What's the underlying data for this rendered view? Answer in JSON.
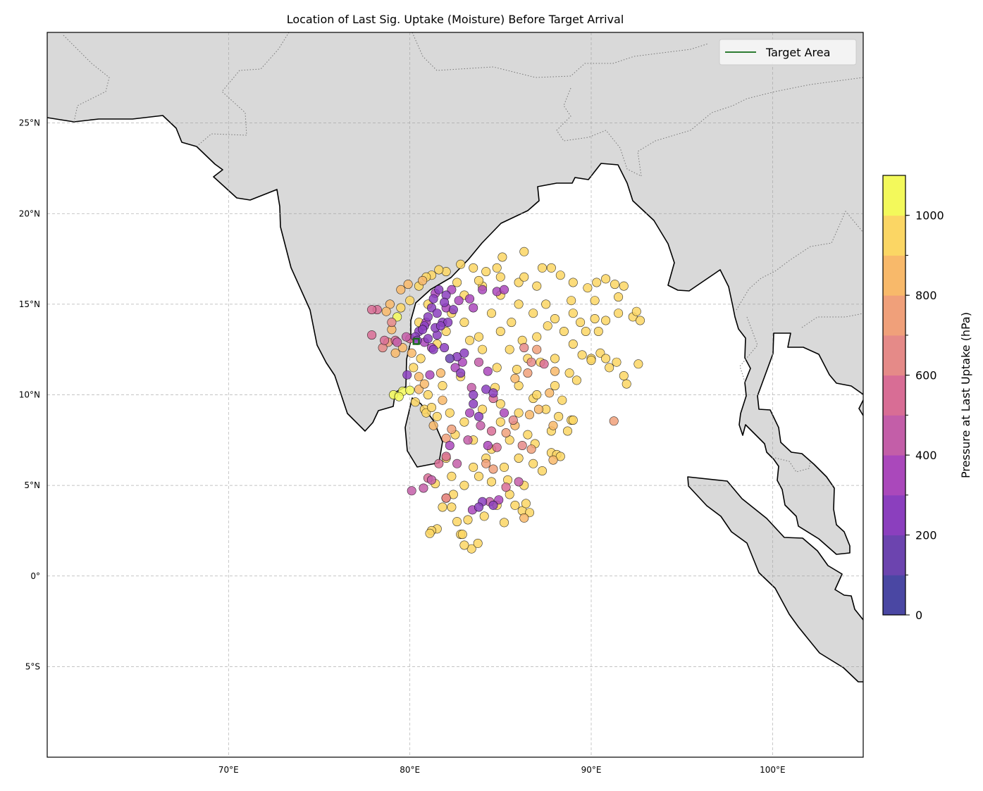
{
  "chart_data": {
    "type": "scatter",
    "title": "Location of Last Sig. Uptake (Moisture) Before Target Arrival",
    "xlabel": "",
    "ylabel": "",
    "xlim": [
      60,
      105
    ],
    "ylim": [
      -10,
      30
    ],
    "grid": true,
    "x_ticks": [
      {
        "value": 70,
        "label": "70°E"
      },
      {
        "value": 80,
        "label": "80°E"
      },
      {
        "value": 90,
        "label": "90°E"
      },
      {
        "value": 100,
        "label": "100°E"
      }
    ],
    "y_ticks": [
      {
        "value": 25,
        "label": "25°N"
      },
      {
        "value": 20,
        "label": "20°N"
      },
      {
        "value": 15,
        "label": "15°N"
      },
      {
        "value": 10,
        "label": "10°N"
      },
      {
        "value": 5,
        "label": "5°N"
      },
      {
        "value": 0,
        "label": "0°"
      },
      {
        "value": -5,
        "label": "5°S"
      }
    ],
    "legend": {
      "placement": "top-right",
      "entries": [
        {
          "label": "Target Area",
          "color": "#2e7d32"
        }
      ]
    },
    "target_area": {
      "lon": [
        80.2,
        80.5
      ],
      "lat": [
        12.8,
        13.1
      ]
    },
    "colorbar": {
      "label": "Pressure at Last Uptake (hPa)",
      "range": [
        0,
        1100
      ],
      "ticks": [
        {
          "value": 0,
          "label": "0"
        },
        {
          "value": 200,
          "label": "200"
        },
        {
          "value": 400,
          "label": "400"
        },
        {
          "value": 600,
          "label": "600"
        },
        {
          "value": 800,
          "label": "800"
        },
        {
          "value": 1000,
          "label": "1000"
        }
      ],
      "band_colors": [
        "#4a47a3",
        "#6c44af",
        "#8b3fbe",
        "#aa48bb",
        "#c35ea8",
        "#d86d95",
        "#e58a88",
        "#f0a07a",
        "#f8b96a",
        "#fbd664",
        "#f3f95b"
      ]
    },
    "points_format": [
      "lon",
      "lat",
      "pressure_hPa"
    ],
    "points": [
      [
        80.5,
        16.0,
        950
      ],
      [
        81.2,
        16.6,
        950
      ],
      [
        82.0,
        16.8,
        950
      ],
      [
        82.8,
        17.2,
        950
      ],
      [
        83.5,
        17.0,
        950
      ],
      [
        84.2,
        16.8,
        950
      ],
      [
        85.0,
        16.5,
        950
      ],
      [
        86.0,
        16.2,
        950
      ],
      [
        87.0,
        16.0,
        950
      ],
      [
        87.8,
        17.0,
        950
      ],
      [
        88.3,
        16.6,
        950
      ],
      [
        89.0,
        16.2,
        950
      ],
      [
        89.8,
        15.9,
        950
      ],
      [
        90.3,
        16.2,
        950
      ],
      [
        90.8,
        16.4,
        950
      ],
      [
        91.3,
        16.1,
        950
      ],
      [
        91.8,
        16.0,
        950
      ],
      [
        91.5,
        15.4,
        950
      ],
      [
        91.5,
        14.5,
        950
      ],
      [
        92.3,
        14.3,
        950
      ],
      [
        92.5,
        14.6,
        950
      ],
      [
        81.0,
        15.0,
        950
      ],
      [
        82.3,
        14.5,
        950
      ],
      [
        83.0,
        14.0,
        950
      ],
      [
        83.8,
        13.2,
        950
      ],
      [
        84.5,
        14.5,
        950
      ],
      [
        85.0,
        15.5,
        950
      ],
      [
        85.6,
        14.0,
        950
      ],
      [
        86.2,
        13.0,
        950
      ],
      [
        86.8,
        14.5,
        950
      ],
      [
        87.5,
        15.0,
        950
      ],
      [
        88.0,
        14.2,
        950
      ],
      [
        88.5,
        13.5,
        950
      ],
      [
        89.0,
        12.8,
        950
      ],
      [
        89.5,
        12.2,
        950
      ],
      [
        90.0,
        12.0,
        950
      ],
      [
        90.5,
        12.3,
        950
      ],
      [
        91.0,
        11.5,
        950
      ],
      [
        91.4,
        11.8,
        950
      ],
      [
        88.8,
        11.2,
        950
      ],
      [
        88.0,
        10.5,
        950
      ],
      [
        87.2,
        11.8,
        950
      ],
      [
        86.5,
        12.0,
        950
      ],
      [
        85.5,
        12.5,
        950
      ],
      [
        84.8,
        11.5,
        950
      ],
      [
        84.0,
        12.5,
        950
      ],
      [
        83.3,
        13.0,
        950
      ],
      [
        82.8,
        11.0,
        950
      ],
      [
        81.8,
        10.5,
        950
      ],
      [
        81.0,
        10.0,
        950
      ],
      [
        80.3,
        9.6,
        950
      ],
      [
        80.8,
        9.2,
        950
      ],
      [
        81.5,
        8.8,
        950
      ],
      [
        82.2,
        9.0,
        950
      ],
      [
        83.0,
        8.5,
        950
      ],
      [
        84.0,
        9.2,
        950
      ],
      [
        85.0,
        9.5,
        950
      ],
      [
        86.0,
        9.0,
        950
      ],
      [
        86.8,
        9.8,
        950
      ],
      [
        87.5,
        9.2,
        950
      ],
      [
        88.2,
        8.8,
        950
      ],
      [
        88.9,
        8.6,
        950
      ],
      [
        87.8,
        8.0,
        950
      ],
      [
        86.5,
        7.8,
        950
      ],
      [
        85.5,
        7.5,
        950
      ],
      [
        84.5,
        7.0,
        950
      ],
      [
        83.5,
        7.5,
        950
      ],
      [
        82.5,
        7.8,
        950
      ],
      [
        82.0,
        6.5,
        950
      ],
      [
        82.3,
        5.5,
        950
      ],
      [
        83.0,
        5.0,
        950
      ],
      [
        83.8,
        5.5,
        950
      ],
      [
        84.5,
        5.2,
        950
      ],
      [
        85.2,
        6.0,
        950
      ],
      [
        86.0,
        6.5,
        950
      ],
      [
        86.8,
        6.2,
        950
      ],
      [
        87.8,
        6.8,
        950
      ],
      [
        88.1,
        6.7,
        950
      ],
      [
        86.3,
        5.0,
        950
      ],
      [
        85.5,
        4.5,
        950
      ],
      [
        84.8,
        3.9,
        950
      ],
      [
        83.2,
        3.1,
        950
      ],
      [
        82.8,
        2.3,
        950
      ],
      [
        82.3,
        3.8,
        950
      ],
      [
        81.5,
        2.6,
        950
      ],
      [
        81.2,
        2.5,
        950
      ],
      [
        81.1,
        2.35,
        950
      ],
      [
        82.4,
        4.5,
        950
      ],
      [
        83.5,
        6.0,
        950
      ],
      [
        84.2,
        6.5,
        950
      ],
      [
        85.0,
        8.5,
        950
      ],
      [
        86.0,
        10.5,
        950
      ],
      [
        87.0,
        10.0,
        950
      ],
      [
        88.0,
        12.0,
        950
      ],
      [
        89.0,
        14.5,
        950
      ],
      [
        90.2,
        14.2,
        950
      ],
      [
        89.7,
        13.5,
        950
      ],
      [
        87.0,
        13.2,
        950
      ],
      [
        86.0,
        15.0,
        950
      ],
      [
        84.0,
        16.0,
        950
      ],
      [
        83.0,
        15.5,
        950
      ],
      [
        80.5,
        14.0,
        950
      ],
      [
        80.0,
        15.2,
        950
      ],
      [
        79.5,
        14.8,
        950
      ],
      [
        80.2,
        11.5,
        950
      ],
      [
        80.6,
        12.0,
        950
      ],
      [
        81.5,
        12.8,
        950
      ],
      [
        82.0,
        13.5,
        950
      ],
      [
        85.0,
        13.5,
        950
      ],
      [
        86.3,
        16.5,
        950
      ],
      [
        92.7,
        14.1,
        950
      ],
      [
        92.6,
        11.7,
        950
      ],
      [
        91.95,
        10.6,
        950
      ],
      [
        91.8,
        11.05,
        950
      ],
      [
        90.8,
        14.1,
        950
      ],
      [
        83.4,
        1.5,
        950
      ],
      [
        83.75,
        1.8,
        950
      ],
      [
        85.2,
        2.95,
        950
      ],
      [
        86.2,
        3.6,
        950
      ],
      [
        86.3,
        17.9,
        950
      ],
      [
        85.1,
        17.6,
        950
      ],
      [
        86.6,
        3.5,
        950
      ],
      [
        86.4,
        4.0,
        950
      ],
      [
        83.0,
        1.7,
        950
      ],
      [
        82.9,
        2.3,
        950
      ],
      [
        85.8,
        3.9,
        950
      ],
      [
        87.3,
        5.8,
        950
      ],
      [
        88.3,
        6.6,
        950
      ],
      [
        89.0,
        8.6,
        950
      ],
      [
        88.7,
        8.0,
        950
      ],
      [
        89.2,
        10.8,
        950
      ],
      [
        90.0,
        11.9,
        950
      ],
      [
        90.4,
        13.5,
        950
      ],
      [
        90.2,
        15.2,
        950
      ],
      [
        87.3,
        17.0,
        950
      ],
      [
        84.8,
        17.0,
        950
      ],
      [
        83.8,
        16.3,
        950
      ],
      [
        82.6,
        16.2,
        950
      ],
      [
        81.6,
        16.9,
        950
      ],
      [
        80.9,
        16.5,
        950
      ],
      [
        80.9,
        9.0,
        950
      ],
      [
        81.2,
        9.3,
        950
      ],
      [
        81.4,
        5.1,
        950
      ],
      [
        81.8,
        3.8,
        950
      ],
      [
        82.6,
        3.0,
        950
      ],
      [
        84.1,
        3.3,
        950
      ],
      [
        85.4,
        5.3,
        950
      ],
      [
        86.9,
        7.3,
        950
      ],
      [
        85.9,
        11.4,
        950
      ],
      [
        84.7,
        10.4,
        950
      ],
      [
        87.6,
        13.8,
        950
      ],
      [
        88.9,
        15.2,
        950
      ],
      [
        89.4,
        14.0,
        950
      ],
      [
        90.8,
        12.0,
        950
      ],
      [
        88.4,
        9.7,
        950
      ],
      [
        79.1,
        10.0,
        1050
      ],
      [
        79.6,
        10.2,
        1050
      ],
      [
        79.4,
        9.9,
        1050
      ],
      [
        80.0,
        10.25,
        1050
      ],
      [
        79.3,
        14.3,
        1050
      ],
      [
        91.25,
        8.55,
        750
      ],
      [
        79.5,
        15.8,
        850
      ],
      [
        79.9,
        16.1,
        850
      ],
      [
        80.7,
        16.3,
        850
      ],
      [
        78.9,
        15.0,
        850
      ],
      [
        79.2,
        12.3,
        850
      ],
      [
        80.5,
        11.0,
        850
      ],
      [
        81.3,
        8.3,
        850
      ],
      [
        82.0,
        7.6,
        750
      ],
      [
        85.8,
        8.3,
        850
      ],
      [
        86.6,
        8.9,
        850
      ],
      [
        87.9,
        8.3,
        850
      ],
      [
        87.7,
        10.1,
        850
      ],
      [
        85.8,
        10.9,
        850
      ],
      [
        84.2,
        6.2,
        750
      ],
      [
        82.0,
        4.3,
        750
      ],
      [
        80.5,
        10.3,
        850
      ],
      [
        81.8,
        9.7,
        850
      ],
      [
        87.0,
        12.5,
        750
      ],
      [
        88.0,
        11.3,
        850
      ],
      [
        78.7,
        14.6,
        850
      ],
      [
        79.0,
        13.6,
        850
      ],
      [
        78.8,
        12.9,
        750
      ],
      [
        79.6,
        12.6,
        850
      ],
      [
        80.1,
        12.3,
        850
      ],
      [
        82.3,
        8.1,
        750
      ],
      [
        85.3,
        7.9,
        750
      ],
      [
        86.7,
        7.0,
        750
      ],
      [
        87.1,
        9.2,
        850
      ],
      [
        84.6,
        5.9,
        750
      ],
      [
        86.3,
        3.2,
        850
      ],
      [
        86.5,
        11.2,
        750
      ],
      [
        87.9,
        6.4,
        850
      ],
      [
        81.7,
        11.2,
        850
      ],
      [
        80.8,
        10.6,
        850
      ],
      [
        79.2,
        13.0,
        550
      ],
      [
        78.6,
        13.0,
        550
      ],
      [
        78.5,
        12.6,
        650
      ],
      [
        78.2,
        14.7,
        550
      ],
      [
        77.9,
        14.7,
        550
      ],
      [
        77.9,
        13.3,
        550
      ],
      [
        79.0,
        14.0,
        650
      ],
      [
        79.3,
        12.9,
        450
      ],
      [
        79.8,
        13.2,
        450
      ],
      [
        80.0,
        13.1,
        550
      ],
      [
        80.1,
        4.7,
        450
      ],
      [
        80.75,
        4.85,
        450
      ],
      [
        81.6,
        6.2,
        550
      ],
      [
        82.0,
        6.6,
        550
      ],
      [
        83.4,
        10.4,
        450
      ],
      [
        84.6,
        9.8,
        550
      ],
      [
        83.9,
        8.3,
        450
      ],
      [
        84.5,
        8.0,
        550
      ],
      [
        83.2,
        7.5,
        450
      ],
      [
        84.8,
        7.1,
        550
      ],
      [
        82.2,
        7.2,
        350
      ],
      [
        82.6,
        6.2,
        450
      ],
      [
        84.4,
        4.1,
        450
      ],
      [
        85.3,
        4.9,
        550
      ],
      [
        86.0,
        5.2,
        450
      ],
      [
        86.3,
        12.6,
        650
      ],
      [
        86.7,
        11.8,
        650
      ],
      [
        87.4,
        11.7,
        550
      ],
      [
        83.8,
        11.8,
        450
      ],
      [
        84.3,
        11.3,
        350
      ],
      [
        85.7,
        8.6,
        650
      ],
      [
        86.2,
        7.2,
        650
      ],
      [
        82.0,
        4.3,
        650
      ],
      [
        81.2,
        5.3,
        450
      ],
      [
        81.0,
        5.4,
        550
      ],
      [
        84.2,
        10.3,
        250
      ],
      [
        83.5,
        9.5,
        250
      ],
      [
        83.5,
        10.0,
        250
      ],
      [
        83.3,
        9.0,
        350
      ],
      [
        84.0,
        4.1,
        250
      ],
      [
        83.45,
        3.65,
        350
      ],
      [
        84.9,
        4.2,
        350
      ],
      [
        84.6,
        3.9,
        250
      ],
      [
        83.8,
        3.8,
        250
      ],
      [
        85.2,
        9.0,
        350
      ],
      [
        84.6,
        10.1,
        250
      ],
      [
        83.8,
        8.8,
        250
      ],
      [
        84.3,
        7.2,
        350
      ],
      [
        79.85,
        11.1,
        250
      ],
      [
        80.5,
        13.5,
        250
      ],
      [
        80.8,
        13.8,
        250
      ],
      [
        81.0,
        14.3,
        250
      ],
      [
        81.2,
        14.8,
        250
      ],
      [
        81.3,
        15.3,
        250
      ],
      [
        81.6,
        15.8,
        250
      ],
      [
        82.0,
        15.5,
        250
      ],
      [
        82.3,
        15.8,
        350
      ],
      [
        82.7,
        15.2,
        350
      ],
      [
        81.8,
        14.0,
        250
      ],
      [
        82.1,
        14.0,
        250
      ],
      [
        81.5,
        13.3,
        250
      ],
      [
        81.3,
        12.5,
        250
      ],
      [
        81.9,
        12.6,
        250
      ],
      [
        82.2,
        12.0,
        150
      ],
      [
        82.6,
        12.1,
        250
      ],
      [
        83.0,
        12.3,
        250
      ],
      [
        82.9,
        11.8,
        350
      ],
      [
        82.8,
        11.2,
        250
      ],
      [
        80.3,
        13.2,
        250
      ],
      [
        80.8,
        12.9,
        350
      ],
      [
        81.4,
        13.7,
        250
      ],
      [
        81.9,
        15.1,
        250
      ],
      [
        83.5,
        14.8,
        350
      ],
      [
        84.0,
        15.8,
        350
      ],
      [
        84.8,
        15.7,
        350
      ],
      [
        85.2,
        15.8,
        350
      ],
      [
        83.3,
        15.3,
        350
      ],
      [
        82.4,
        14.7,
        250
      ],
      [
        81.1,
        11.1,
        350
      ],
      [
        80.4,
        13.0,
        250
      ],
      [
        80.7,
        13.6,
        250
      ],
      [
        81.0,
        13.1,
        250
      ],
      [
        81.5,
        14.5,
        250
      ],
      [
        81.7,
        13.8,
        250
      ],
      [
        82.0,
        14.8,
        350
      ],
      [
        81.4,
        15.6,
        350
      ],
      [
        80.9,
        14.0,
        350
      ],
      [
        81.2,
        12.6,
        350
      ],
      [
        82.5,
        11.5,
        350
      ]
    ]
  }
}
